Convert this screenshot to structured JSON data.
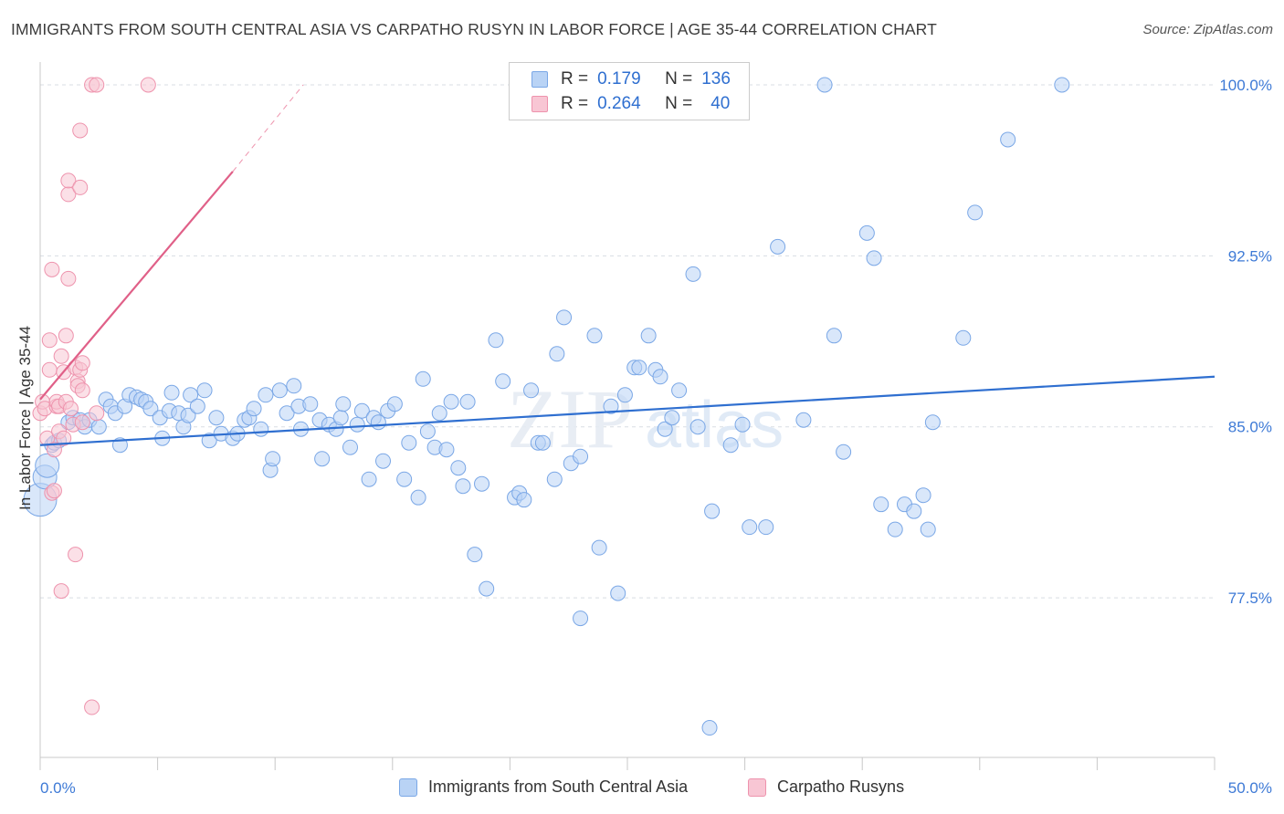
{
  "title": "IMMIGRANTS FROM SOUTH CENTRAL ASIA VS CARPATHO RUSYN IN LABOR FORCE | AGE 35-44 CORRELATION CHART",
  "source": "Source: ZipAtlas.com",
  "legend": {
    "r_label": "R =",
    "n_label": "N =",
    "rows": [
      {
        "r": "0.179",
        "n": "136",
        "fill": "#b9d3f5",
        "stroke": "#7aa7e6"
      },
      {
        "r": "0.264",
        "n": "40",
        "fill": "#f8c6d4",
        "stroke": "#ee93ad"
      }
    ]
  },
  "bottom_legend": [
    {
      "label": "Immigrants from South Central Asia",
      "fill": "#b9d3f5",
      "stroke": "#7aa7e6"
    },
    {
      "label": "Carpatho Rusyns",
      "fill": "#f8c6d4",
      "stroke": "#ee93ad"
    }
  ],
  "watermark": {
    "zip": "ZIP",
    "atlas": "atlas"
  },
  "chart_data": {
    "type": "scatter",
    "title": "IMMIGRANTS FROM SOUTH CENTRAL ASIA VS CARPATHO RUSYN IN LABOR FORCE | AGE 35-44 CORRELATION CHART",
    "xlabel": "",
    "ylabel": "In Labor Force | Age 35-44",
    "xlim": [
      0,
      50
    ],
    "ylim": [
      70.5,
      101
    ],
    "x_tick_labels": [
      "0.0%",
      "50.0%"
    ],
    "y_ticks": [
      77.5,
      85.0,
      92.5,
      100.0
    ],
    "y_tick_labels": [
      "77.5%",
      "85.0%",
      "92.5%",
      "100.0%"
    ],
    "grid": true,
    "legend_position": "top-center",
    "series": [
      {
        "name": "Immigrants from South Central Asia",
        "color": "#2f6fd0",
        "fill": "#b9d3f5",
        "stroke": "#7aa7e6",
        "trend": {
          "x": [
            0,
            50
          ],
          "y": [
            84.2,
            87.2
          ]
        },
        "points": [
          [
            0.0,
            81.8
          ],
          [
            0.2,
            82.8
          ],
          [
            0.3,
            83.3
          ],
          [
            0.5,
            84.2
          ],
          [
            0.6,
            84.3
          ],
          [
            0.8,
            84.4
          ],
          [
            1.2,
            85.2
          ],
          [
            1.4,
            85.4
          ],
          [
            1.7,
            85.3
          ],
          [
            1.9,
            85.0
          ],
          [
            2.1,
            85.3
          ],
          [
            2.5,
            85.0
          ],
          [
            2.8,
            86.2
          ],
          [
            3.0,
            85.9
          ],
          [
            3.2,
            85.6
          ],
          [
            3.4,
            84.2
          ],
          [
            3.6,
            85.9
          ],
          [
            3.8,
            86.4
          ],
          [
            4.1,
            86.3
          ],
          [
            4.3,
            86.2
          ],
          [
            4.5,
            86.1
          ],
          [
            4.7,
            85.8
          ],
          [
            5.1,
            85.4
          ],
          [
            5.2,
            84.5
          ],
          [
            5.5,
            85.7
          ],
          [
            5.6,
            86.5
          ],
          [
            5.9,
            85.6
          ],
          [
            6.1,
            85.0
          ],
          [
            6.3,
            85.5
          ],
          [
            6.4,
            86.4
          ],
          [
            6.7,
            85.9
          ],
          [
            7.0,
            86.6
          ],
          [
            7.2,
            84.4
          ],
          [
            7.5,
            85.4
          ],
          [
            7.7,
            84.7
          ],
          [
            8.2,
            84.5
          ],
          [
            8.4,
            84.7
          ],
          [
            8.7,
            85.3
          ],
          [
            8.9,
            85.4
          ],
          [
            9.1,
            85.8
          ],
          [
            9.4,
            84.9
          ],
          [
            9.6,
            86.4
          ],
          [
            9.8,
            83.1
          ],
          [
            9.9,
            83.6
          ],
          [
            10.2,
            86.6
          ],
          [
            10.5,
            85.6
          ],
          [
            10.8,
            86.8
          ],
          [
            11.0,
            85.9
          ],
          [
            11.1,
            84.9
          ],
          [
            11.5,
            86.0
          ],
          [
            11.9,
            85.3
          ],
          [
            12.0,
            83.6
          ],
          [
            12.3,
            85.1
          ],
          [
            12.6,
            84.9
          ],
          [
            12.8,
            85.4
          ],
          [
            12.9,
            86.0
          ],
          [
            13.2,
            84.1
          ],
          [
            13.5,
            85.1
          ],
          [
            13.7,
            85.7
          ],
          [
            14.0,
            82.7
          ],
          [
            14.2,
            85.4
          ],
          [
            14.4,
            85.2
          ],
          [
            14.6,
            83.5
          ],
          [
            14.8,
            85.7
          ],
          [
            15.1,
            86.0
          ],
          [
            15.5,
            82.7
          ],
          [
            15.7,
            84.3
          ],
          [
            16.1,
            81.9
          ],
          [
            16.3,
            87.1
          ],
          [
            16.5,
            84.8
          ],
          [
            16.8,
            84.1
          ],
          [
            17.0,
            85.6
          ],
          [
            17.3,
            84.0
          ],
          [
            17.5,
            86.1
          ],
          [
            17.8,
            83.2
          ],
          [
            18.0,
            82.4
          ],
          [
            18.2,
            86.1
          ],
          [
            18.5,
            79.4
          ],
          [
            18.8,
            82.5
          ],
          [
            19.0,
            77.9
          ],
          [
            19.4,
            88.8
          ],
          [
            19.7,
            87.0
          ],
          [
            20.2,
            81.9
          ],
          [
            20.4,
            82.1
          ],
          [
            20.6,
            81.8
          ],
          [
            20.9,
            86.6
          ],
          [
            21.2,
            84.3
          ],
          [
            21.4,
            84.3
          ],
          [
            21.9,
            82.7
          ],
          [
            22.0,
            88.2
          ],
          [
            22.3,
            89.8
          ],
          [
            22.6,
            83.4
          ],
          [
            23.0,
            83.7
          ],
          [
            23.0,
            76.6
          ],
          [
            23.6,
            89.0
          ],
          [
            23.8,
            79.7
          ],
          [
            24.3,
            85.9
          ],
          [
            24.6,
            77.7
          ],
          [
            24.9,
            86.4
          ],
          [
            25.3,
            87.6
          ],
          [
            25.5,
            87.6
          ],
          [
            25.9,
            89.0
          ],
          [
            26.2,
            87.5
          ],
          [
            26.4,
            87.2
          ],
          [
            26.6,
            84.9
          ],
          [
            26.9,
            85.4
          ],
          [
            27.2,
            86.6
          ],
          [
            27.8,
            91.7
          ],
          [
            28.0,
            85.0
          ],
          [
            28.6,
            81.3
          ],
          [
            28.5,
            71.8
          ],
          [
            29.4,
            84.2
          ],
          [
            29.9,
            85.1
          ],
          [
            30.2,
            80.6
          ],
          [
            30.9,
            80.6
          ],
          [
            31.4,
            92.9
          ],
          [
            32.5,
            85.3
          ],
          [
            33.4,
            100.0
          ],
          [
            33.8,
            89.0
          ],
          [
            34.2,
            83.9
          ],
          [
            35.2,
            93.5
          ],
          [
            35.5,
            92.4
          ],
          [
            35.8,
            81.6
          ],
          [
            36.4,
            80.5
          ],
          [
            36.8,
            81.6
          ],
          [
            37.2,
            81.3
          ],
          [
            37.6,
            82.0
          ],
          [
            37.8,
            80.5
          ],
          [
            38.0,
            85.2
          ],
          [
            39.3,
            88.9
          ],
          [
            39.8,
            94.4
          ],
          [
            41.2,
            97.6
          ],
          [
            43.5,
            100.0
          ]
        ]
      },
      {
        "name": "Carpatho Rusyns",
        "color": "#e06088",
        "fill": "#f8c6d4",
        "stroke": "#ee93ad",
        "trend": {
          "x": [
            0,
            8.2
          ],
          "y": [
            86.2,
            96.2
          ],
          "dashed_to": [
            11.2,
            100.0
          ]
        },
        "points": [
          [
            0.0,
            85.6
          ],
          [
            0.1,
            86.1
          ],
          [
            0.2,
            85.8
          ],
          [
            0.3,
            84.5
          ],
          [
            0.4,
            88.8
          ],
          [
            0.4,
            87.5
          ],
          [
            0.5,
            91.9
          ],
          [
            0.5,
            82.1
          ],
          [
            0.6,
            82.2
          ],
          [
            0.6,
            84.0
          ],
          [
            0.7,
            85.9
          ],
          [
            0.7,
            86.1
          ],
          [
            0.8,
            84.8
          ],
          [
            0.8,
            85.9
          ],
          [
            0.9,
            88.1
          ],
          [
            0.9,
            77.8
          ],
          [
            1.0,
            84.5
          ],
          [
            1.0,
            87.4
          ],
          [
            1.1,
            86.1
          ],
          [
            1.1,
            89.0
          ],
          [
            1.2,
            91.5
          ],
          [
            1.2,
            95.2
          ],
          [
            1.2,
            95.8
          ],
          [
            1.3,
            85.8
          ],
          [
            1.4,
            85.1
          ],
          [
            1.5,
            79.4
          ],
          [
            1.5,
            87.6
          ],
          [
            1.6,
            87.0
          ],
          [
            1.6,
            86.8
          ],
          [
            1.7,
            98.0
          ],
          [
            1.7,
            87.5
          ],
          [
            1.7,
            95.5
          ],
          [
            1.8,
            87.8
          ],
          [
            1.8,
            86.6
          ],
          [
            1.8,
            85.2
          ],
          [
            2.2,
            100.0
          ],
          [
            2.2,
            72.7
          ],
          [
            2.4,
            100.0
          ],
          [
            2.4,
            85.6
          ],
          [
            4.6,
            100.0
          ]
        ]
      }
    ]
  }
}
